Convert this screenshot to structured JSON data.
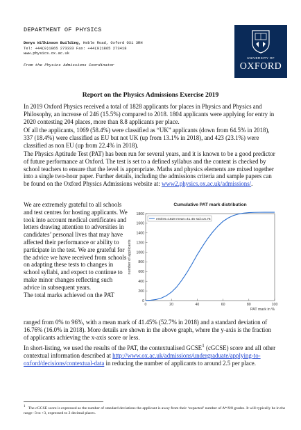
{
  "header": {
    "department": "DEPARTMENT OF PHYSICS",
    "address_line1_bold": "Denys Wilkinson Building,",
    "address_line1_rest": " Keble Road, Oxford  OX1 3RH",
    "address_line2": "Tel: +44(0)1865 273333  Fax: +44(0)1865 273418",
    "address_line3": "www.physics.ox.ac.uk",
    "from": "From the Physics Admissions Coordinator"
  },
  "logo": {
    "university_of": "UNIVERSITY OF",
    "oxford": "OXFORD",
    "color": "#0a2a58"
  },
  "title": "Report on the Physics Admissions Exercise 2019",
  "paragraphs": {
    "p1": "In 2019 Oxford Physics received a total of 1828 applicants for places in Physics and Physics and Philosophy, an increase of 246 (15.5%) compared to 2018. 1804 applicants were applying for entry in 2020 contesting 204 places, more than 8.8 applicants per place.",
    "p2": "Of all the applicants, 1069 (58.4%) were classified as “UK” applicants (down from 64.5% in 2018), 337 (18.4%) were classified as EU but not UK (up from 13.1% in 2018), and 423 (23.1%) were classified as non EU (up from 22.4% in 2018).",
    "p3": "The Physics Aptitude Test (PAT) has been run for several years, and it is known to be a good predictor of future performance at Oxford. The test is set to a defined syllabus and the content is checked by school teachers to ensure that the level is appropriate. Maths and physics elements are mixed together into a single two-hour paper. Further details,  including the admissions criteria and sample papers can be found on the Oxford Physics Admissions website at:",
    "p3_link": "www2.physics.ox.ac.uk/admissions/",
    "p3_end": ".",
    "p4": "We are extremely grateful to all schools and test centres for hosting applicants. We took into account medical certificates and letters drawing attention to adversities in candidates’ personal lives that may have affected their performance or ability to participate in the test. We are grateful for the advice we have received from schools on adapting these tests to changes in school syllabi, and expect to continue to make minor changes reflecting such advice in subsequent years.",
    "p5_start": "The total marks achieved on the PAT",
    "p5_rest": "ranged from 0% to 96%, with a mean mark of 41.45% (52.7% in 2018) and a standard deviation of 16.76% (16.0% in 2018). More details are shown in the above graph, where the y-axis is the fraction of applicants achieving the x-axis score or less.",
    "p6_a": "In short-listing, we used the results of the PAT, the contextualised GCSE",
    "p6_sup": "1",
    "p6_b": " (cGCSE) score and all other contextual information described at",
    "p6_link": "http://www.ox.ac.uk/admissions/undergraduate/applying-to-oxford/decisions/contextual-data",
    "p6_c": " in reducing the number of applicants to around 2.5 per place."
  },
  "footnote": {
    "marker": "1",
    "text": "The cGCSE score is expressed as the number of standard deviations the applicant is away from their ‘expected’ number of A*/9/8 grades. It will typically be in the range -3 to +3, expressed to 2 decimal places."
  },
  "chart_data": {
    "type": "line",
    "title": "Cumulative PAT mark distribution",
    "xlabel": "PAT mark in %",
    "ylabel": "number of applicants",
    "legend": "entries=1828 mean=41.45 std=16.76",
    "legend_position": "top-left",
    "xlim": [
      0,
      100
    ],
    "ylim": [
      0,
      1800
    ],
    "xticks": [
      0,
      20,
      40,
      60,
      80,
      100
    ],
    "yticks": [
      0,
      200,
      400,
      600,
      800,
      1000,
      1200,
      1400,
      1600,
      1800
    ],
    "grid": false,
    "color": "#2a6fd0",
    "series": [
      {
        "x": [
          0,
          4,
          8,
          12,
          16,
          20,
          24,
          28,
          32,
          36,
          40,
          44,
          48,
          52,
          56,
          60,
          64,
          68,
          72,
          76,
          80,
          84,
          88,
          92,
          96
        ],
        "y": [
          2,
          8,
          22,
          50,
          100,
          175,
          280,
          420,
          580,
          760,
          950,
          1120,
          1280,
          1420,
          1540,
          1640,
          1710,
          1760,
          1792,
          1810,
          1820,
          1825,
          1827,
          1828,
          1828
        ]
      }
    ]
  }
}
